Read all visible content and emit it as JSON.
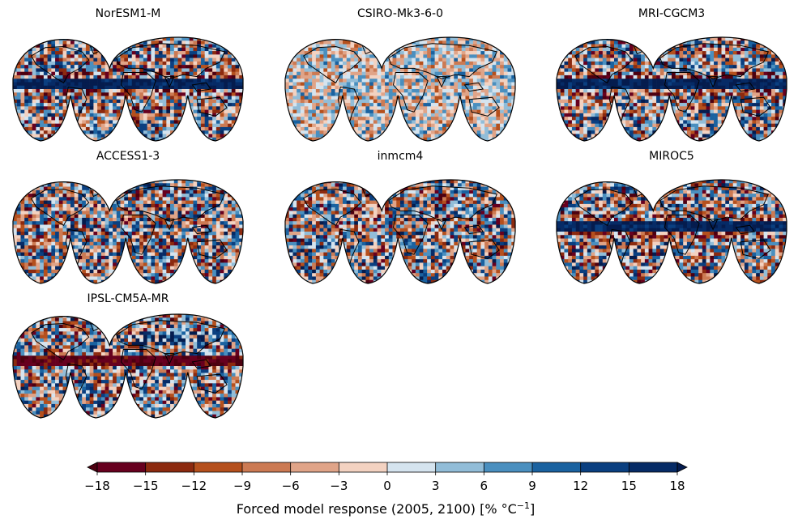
{
  "figure": {
    "panels": [
      {
        "title": "NorESM1-M",
        "pattern": "equatorial-negative-band",
        "seed": 11
      },
      {
        "title": "CSIRO-Mk3-6-0",
        "pattern": "mixed-weak",
        "seed": 23
      },
      {
        "title": "MRI-CGCM3",
        "pattern": "equatorial-negative-band",
        "seed": 37
      },
      {
        "title": "ACCESS1-3",
        "pattern": "mixed-strong",
        "seed": 41
      },
      {
        "title": "inmcm4",
        "pattern": "mixed-strong",
        "seed": 53
      },
      {
        "title": "MIROC5",
        "pattern": "equatorial-negative-band",
        "seed": 67
      },
      {
        "title": "IPSL-CM5A-MR",
        "pattern": "equatorial-positive-band",
        "seed": 79
      }
    ],
    "projection": "interrupted-goode-homolosine",
    "colorbar": {
      "label_main": "Forced model response (2005, 2100) [% °C",
      "label_sup": "−1",
      "label_end": "]",
      "ticks": [
        "−18",
        "−15",
        "−12",
        "−9",
        "−6",
        "−3",
        "0",
        "3",
        "6",
        "9",
        "12",
        "15",
        "18"
      ],
      "levels": [
        -18,
        -15,
        -12,
        -9,
        -6,
        -3,
        0,
        3,
        6,
        9,
        12,
        15,
        18
      ],
      "extend": "both",
      "colors": [
        "#67001f",
        "#8c2a0f",
        "#b5501d",
        "#cc7a53",
        "#e0a488",
        "#f3d2c1",
        "#d5e4ef",
        "#92bdd8",
        "#4a8fbf",
        "#1a62a0",
        "#0a3f80",
        "#062b66"
      ],
      "under_color": "#4d0010",
      "over_color": "#051c4e"
    },
    "colors": {
      "land_outline": "#000000",
      "ocean_neutral": "#e6e6e6"
    }
  }
}
